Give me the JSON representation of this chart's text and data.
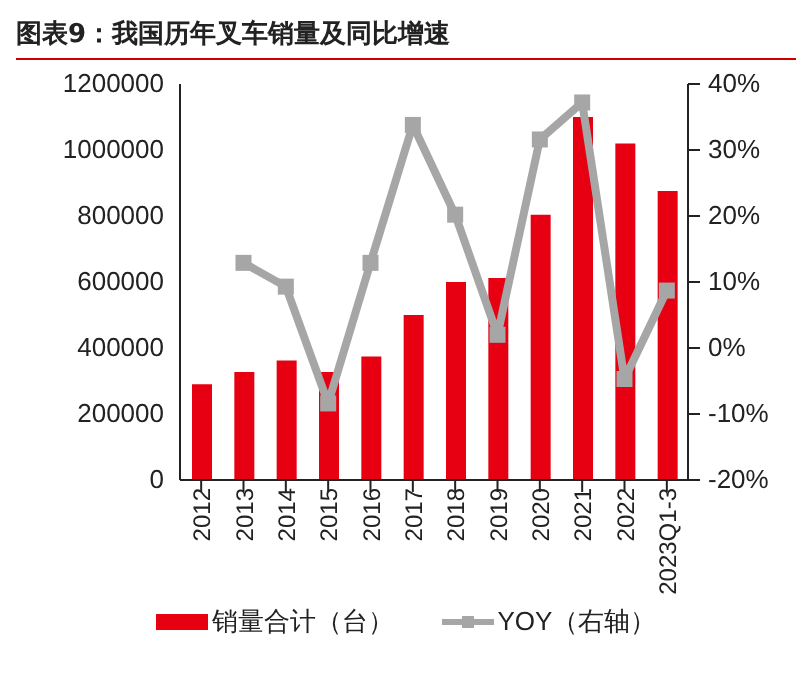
{
  "chart_data": {
    "type": "bar",
    "title": "图表9：我国历年叉车销量及同比增速",
    "categories": [
      "2012",
      "2013",
      "2014",
      "2015",
      "2016",
      "2017",
      "2018",
      "2019",
      "2020",
      "2021",
      "2022",
      "2023Q1-3"
    ],
    "series": [
      {
        "name": "销量合计（台）",
        "color": "#e60012",
        "values": [
          290000,
          327000,
          362000,
          327000,
          374000,
          500000,
          600000,
          612000,
          804000,
          1100000,
          1020000,
          876000
        ]
      },
      {
        "name": "YOY（右轴）",
        "type": "line",
        "axis": "y2",
        "color": "#a6a6a6",
        "marker": "square",
        "values": [
          null,
          12.9,
          9.3,
          -8.4,
          12.9,
          33.8,
          20.2,
          2.0,
          31.6,
          37.2,
          -4.7,
          8.7
        ]
      }
    ],
    "ylim": [
      0,
      1200000
    ],
    "yticks": [
      0,
      200000,
      400000,
      600000,
      800000,
      1000000,
      1200000
    ],
    "y2lim": [
      -20,
      40
    ],
    "y2ticks": [
      {
        "value": -20,
        "label": "-20%"
      },
      {
        "value": -10,
        "label": "-10%"
      },
      {
        "value": 0,
        "label": "0%"
      },
      {
        "value": 10,
        "label": "10%"
      },
      {
        "value": 20,
        "label": "20%"
      },
      {
        "value": 30,
        "label": "30%"
      },
      {
        "value": 40,
        "label": "40%"
      }
    ],
    "grid": false,
    "legend": "bottom"
  }
}
